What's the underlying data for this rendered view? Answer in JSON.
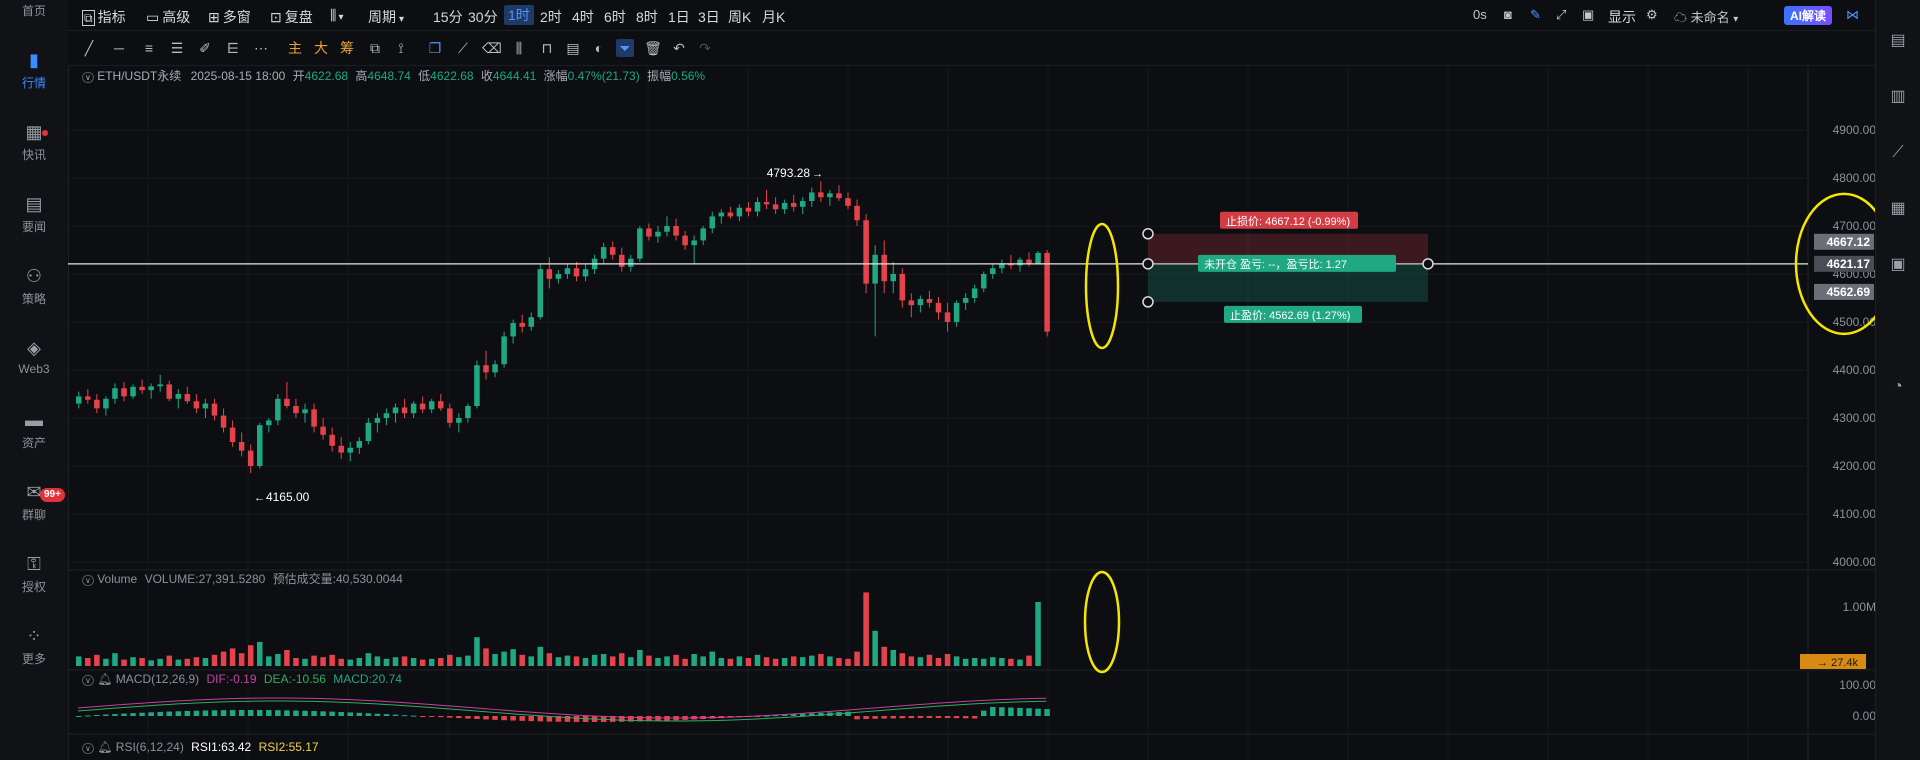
{
  "left_nav": [
    {
      "label": "首页",
      "icon": "home-icon"
    },
    {
      "label": "行情",
      "icon": "market-bars-icon",
      "active": true
    },
    {
      "label": "快讯",
      "icon": "newsflash-icon",
      "dot": true
    },
    {
      "label": "要闻",
      "icon": "news-document-icon"
    },
    {
      "label": "策略",
      "icon": "strategy-icon"
    },
    {
      "label": "Web3",
      "icon": "web3-icon"
    },
    {
      "label": "资产",
      "icon": "wallet-icon"
    },
    {
      "label": "群聊",
      "icon": "chat-icon",
      "badge": "99+"
    },
    {
      "label": "授权",
      "icon": "authorize-icon"
    },
    {
      "label": "更多",
      "icon": "more-grid-icon"
    }
  ],
  "topbar": {
    "indicators": "指标",
    "advanced": "高级",
    "multi_window": "多窗",
    "replay": "复盘",
    "period": "周期",
    "timeframes": [
      "15分",
      "30分",
      "1时",
      "2时",
      "4时",
      "6时",
      "8时",
      "1日",
      "3日",
      "周K",
      "月K"
    ],
    "selected_timeframe": "1时",
    "countdown": "0s",
    "display": "显示",
    "layout_name": "未命名",
    "ai_button": "AI解读"
  },
  "symbol_info": {
    "symbol": "ETH/USDT永续",
    "datetime": "2025-08-15 18:00",
    "open_label": "开",
    "open": "4622.68",
    "high_label": "高",
    "high": "4648.74",
    "low_label": "低",
    "low": "4622.68",
    "close_label": "收",
    "close": "4644.41",
    "change_label": "涨幅",
    "change": "0.47%(21.73)",
    "amplitude_label": "振幅",
    "amplitude": "0.56%"
  },
  "order_overlay": {
    "stop_loss": "止损价: 4667.12 (-0.99%)",
    "entry": "未开仓  盈亏: --，盈亏比: 1.27",
    "take_profit": "止盈价: 4562.69 (1.27%)"
  },
  "price_axis": {
    "ticks": [
      "4900.00",
      "4800.00",
      "4700.00",
      "4600.00",
      "4500.00",
      "4400.00",
      "4300.00",
      "4200.00",
      "4100.00",
      "4000.00"
    ],
    "tag_stop": "4667.12",
    "tag_current": "4621.17",
    "tag_take": "4562.69"
  },
  "annotations": {
    "high": "4793.28",
    "low": "4165.00"
  },
  "volume_pane": {
    "title": "Volume",
    "value": "VOLUME:27,391.5280",
    "estimate": "预估成交量:40,530.0044",
    "axis_tick": "1.00M",
    "tag": "27.4k"
  },
  "macd_pane": {
    "title": "MACD(12,26,9)",
    "dif": "DIF:-0.19",
    "dea": "DEA:-10.56",
    "macd": "MACD:20.74",
    "axis_ticks": [
      "100.00",
      "0.00"
    ]
  },
  "rsi_pane": {
    "title": "RSI(6,12,24)",
    "rsi1": "RSI1:63.42",
    "rsi2": "RSI2:55.17"
  },
  "colors": {
    "up": "#1fa882",
    "down": "#e5434b",
    "accent": "#3d8bff",
    "highlight": "#f5e600"
  },
  "chart_data": {
    "type": "candlestick",
    "ylim": [
      3950,
      4950
    ],
    "ohlc": [
      [
        4330,
        4355,
        4320,
        4345
      ],
      [
        4345,
        4360,
        4330,
        4338
      ],
      [
        4338,
        4350,
        4310,
        4320
      ],
      [
        4320,
        4345,
        4305,
        4340
      ],
      [
        4340,
        4372,
        4330,
        4362
      ],
      [
        4362,
        4375,
        4335,
        4345
      ],
      [
        4345,
        4370,
        4340,
        4365
      ],
      [
        4365,
        4380,
        4350,
        4358
      ],
      [
        4358,
        4372,
        4340,
        4366
      ],
      [
        4366,
        4390,
        4355,
        4370
      ],
      [
        4370,
        4378,
        4335,
        4340
      ],
      [
        4340,
        4360,
        4320,
        4350
      ],
      [
        4350,
        4365,
        4330,
        4335
      ],
      [
        4335,
        4350,
        4310,
        4320
      ],
      [
        4320,
        4340,
        4300,
        4330
      ],
      [
        4330,
        4340,
        4295,
        4305
      ],
      [
        4305,
        4320,
        4270,
        4280
      ],
      [
        4280,
        4295,
        4240,
        4250
      ],
      [
        4250,
        4270,
        4220,
        4232
      ],
      [
        4232,
        4245,
        4185,
        4200
      ],
      [
        4200,
        4290,
        4195,
        4285
      ],
      [
        4285,
        4300,
        4270,
        4295
      ],
      [
        4295,
        4350,
        4285,
        4340
      ],
      [
        4340,
        4375,
        4320,
        4325
      ],
      [
        4325,
        4340,
        4300,
        4310
      ],
      [
        4310,
        4330,
        4290,
        4318
      ],
      [
        4318,
        4330,
        4270,
        4282
      ],
      [
        4282,
        4300,
        4255,
        4265
      ],
      [
        4265,
        4280,
        4230,
        4242
      ],
      [
        4242,
        4260,
        4215,
        4228
      ],
      [
        4228,
        4250,
        4210,
        4238
      ],
      [
        4238,
        4260,
        4225,
        4252
      ],
      [
        4252,
        4300,
        4245,
        4290
      ],
      [
        4290,
        4310,
        4270,
        4300
      ],
      [
        4300,
        4320,
        4285,
        4310
      ],
      [
        4310,
        4330,
        4290,
        4322
      ],
      [
        4322,
        4340,
        4300,
        4310
      ],
      [
        4310,
        4335,
        4300,
        4330
      ],
      [
        4330,
        4345,
        4310,
        4318
      ],
      [
        4318,
        4340,
        4310,
        4335
      ],
      [
        4335,
        4350,
        4315,
        4320
      ],
      [
        4320,
        4330,
        4280,
        4290
      ],
      [
        4290,
        4310,
        4270,
        4300
      ],
      [
        4300,
        4330,
        4290,
        4325
      ],
      [
        4325,
        4420,
        4320,
        4410
      ],
      [
        4410,
        4440,
        4380,
        4395
      ],
      [
        4395,
        4420,
        4385,
        4412
      ],
      [
        4412,
        4480,
        4405,
        4470
      ],
      [
        4470,
        4505,
        4455,
        4498
      ],
      [
        4498,
        4515,
        4478,
        4490
      ],
      [
        4490,
        4520,
        4482,
        4510
      ],
      [
        4510,
        4620,
        4505,
        4610
      ],
      [
        4610,
        4635,
        4570,
        4590
      ],
      [
        4590,
        4608,
        4580,
        4600
      ],
      [
        4600,
        4620,
        4590,
        4612
      ],
      [
        4612,
        4625,
        4585,
        4595
      ],
      [
        4595,
        4620,
        4585,
        4610
      ],
      [
        4610,
        4640,
        4600,
        4632
      ],
      [
        4632,
        4665,
        4622,
        4656
      ],
      [
        4656,
        4668,
        4630,
        4640
      ],
      [
        4640,
        4655,
        4605,
        4615
      ],
      [
        4615,
        4640,
        4605,
        4632
      ],
      [
        4632,
        4700,
        4625,
        4695
      ],
      [
        4695,
        4705,
        4670,
        4678
      ],
      [
        4678,
        4700,
        4665,
        4688
      ],
      [
        4688,
        4720,
        4678,
        4700
      ],
      [
        4700,
        4715,
        4670,
        4680
      ],
      [
        4680,
        4690,
        4650,
        4660
      ],
      [
        4660,
        4680,
        4620,
        4670
      ],
      [
        4670,
        4700,
        4660,
        4695
      ],
      [
        4695,
        4730,
        4685,
        4720
      ],
      [
        4720,
        4735,
        4705,
        4728
      ],
      [
        4728,
        4740,
        4715,
        4720
      ],
      [
        4720,
        4745,
        4710,
        4738
      ],
      [
        4738,
        4750,
        4720,
        4730
      ],
      [
        4730,
        4760,
        4720,
        4750
      ],
      [
        4750,
        4775,
        4735,
        4745
      ],
      [
        4745,
        4760,
        4725,
        4735
      ],
      [
        4735,
        4755,
        4725,
        4748
      ],
      [
        4748,
        4765,
        4730,
        4740
      ],
      [
        4740,
        4760,
        4725,
        4752
      ],
      [
        4752,
        4780,
        4740,
        4770
      ],
      [
        4770,
        4793,
        4750,
        4760
      ],
      [
        4760,
        4775,
        4742,
        4768
      ],
      [
        4768,
        4785,
        4752,
        4758
      ],
      [
        4758,
        4770,
        4735,
        4742
      ],
      [
        4742,
        4755,
        4700,
        4712
      ],
      [
        4712,
        4725,
        4560,
        4580
      ],
      [
        4580,
        4660,
        4470,
        4640
      ],
      [
        4640,
        4670,
        4560,
        4585
      ],
      [
        4585,
        4625,
        4560,
        4600
      ],
      [
        4600,
        4612,
        4530,
        4545
      ],
      [
        4545,
        4560,
        4510,
        4535
      ],
      [
        4535,
        4555,
        4520,
        4548
      ],
      [
        4548,
        4565,
        4530,
        4540
      ],
      [
        4540,
        4552,
        4505,
        4520
      ],
      [
        4520,
        4540,
        4480,
        4500
      ],
      [
        4500,
        4545,
        4490,
        4540
      ],
      [
        4540,
        4560,
        4525,
        4550
      ],
      [
        4550,
        4578,
        4540,
        4570
      ],
      [
        4570,
        4605,
        4562,
        4600
      ],
      [
        4600,
        4620,
        4590,
        4612
      ],
      [
        4612,
        4630,
        4602,
        4622
      ],
      [
        4622,
        4640,
        4610,
        4618
      ],
      [
        4618,
        4635,
        4605,
        4630
      ],
      [
        4630,
        4645,
        4615,
        4622
      ],
      [
        4622,
        4648,
        4622,
        4644
      ],
      [
        4644,
        4650,
        4470,
        4480
      ]
    ],
    "volume": [
      12,
      10,
      14,
      9,
      16,
      8,
      11,
      10,
      7,
      9,
      13,
      8,
      9,
      11,
      10,
      14,
      18,
      22,
      16,
      26,
      30,
      12,
      15,
      20,
      10,
      9,
      13,
      11,
      14,
      9,
      8,
      10,
      16,
      12,
      9,
      11,
      12,
      10,
      8,
      9,
      10,
      14,
      11,
      13,
      36,
      22,
      15,
      18,
      21,
      14,
      12,
      24,
      16,
      11,
      13,
      12,
      10,
      14,
      15,
      12,
      16,
      11,
      20,
      13,
      10,
      12,
      14,
      9,
      15,
      12,
      18,
      10,
      9,
      12,
      10,
      14,
      11,
      9,
      10,
      12,
      11,
      13,
      15,
      12,
      10,
      9,
      18,
      92,
      44,
      24,
      20,
      16,
      12,
      11,
      14,
      10,
      15,
      12,
      9,
      10,
      9,
      11,
      10,
      9,
      8,
      13,
      80
    ]
  }
}
